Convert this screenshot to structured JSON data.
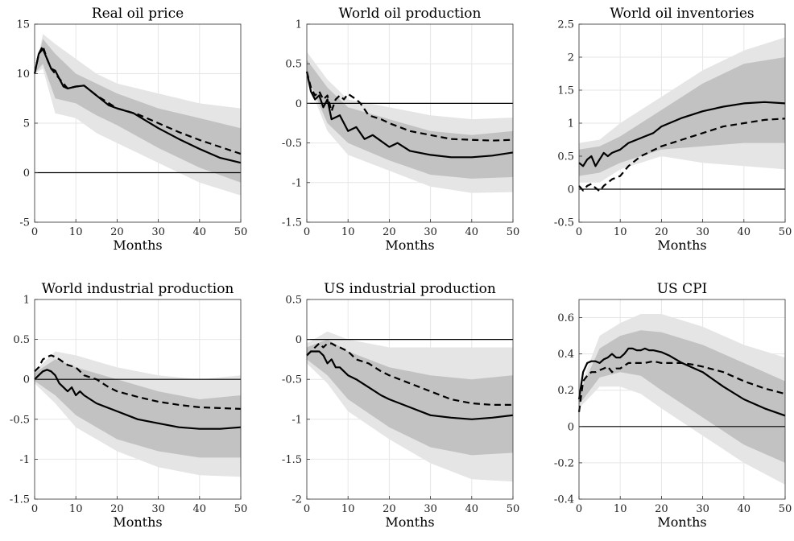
{
  "chart_data": [
    {
      "type": "line",
      "title": "Real oil price",
      "xlabel": "Months",
      "xlim": [
        0,
        50
      ],
      "ylim": [
        -5,
        15
      ],
      "xticks": [
        0,
        10,
        20,
        30,
        40,
        50
      ],
      "yticks": [
        -5,
        0,
        5,
        10,
        15
      ],
      "zero_line": true,
      "series": [
        {
          "style": "solid",
          "x": [
            0,
            1,
            2,
            3,
            4,
            5,
            6,
            7,
            8,
            10,
            12,
            15,
            18,
            20,
            24,
            30,
            35,
            40,
            45,
            50
          ],
          "y": [
            10,
            12,
            12.5,
            11.5,
            10.5,
            10.3,
            9.5,
            8.7,
            8.5,
            8.7,
            8.8,
            7.8,
            6.8,
            6.5,
            6.0,
            4.5,
            3.4,
            2.4,
            1.5,
            1.0
          ]
        },
        {
          "style": "dashed",
          "x": [
            0,
            1,
            2,
            3,
            4,
            5,
            6,
            8,
            10,
            12,
            15,
            20,
            25,
            30,
            35,
            40,
            45,
            50
          ],
          "y": [
            10,
            12,
            12.8,
            11.5,
            10.5,
            10,
            9.5,
            8.5,
            8.7,
            8.8,
            7.8,
            6.5,
            5.9,
            5.0,
            4.1,
            3.3,
            2.6,
            1.9
          ]
        }
      ],
      "bands": [
        {
          "level": "outer",
          "x": [
            0,
            2,
            5,
            10,
            15,
            20,
            30,
            40,
            50
          ],
          "lower": [
            10,
            10.5,
            6,
            5.5,
            4,
            3,
            1,
            -1,
            -2.3
          ],
          "upper": [
            10,
            14,
            13,
            11.5,
            10,
            9,
            8,
            7,
            6.5
          ]
        },
        {
          "level": "inner",
          "x": [
            0,
            2,
            5,
            10,
            15,
            20,
            30,
            40,
            50
          ],
          "lower": [
            10,
            11,
            7.5,
            7,
            5.8,
            4.8,
            2.5,
            0.5,
            -1
          ],
          "upper": [
            10,
            13.5,
            12,
            10,
            9,
            8,
            6.5,
            5.5,
            4.5
          ]
        }
      ]
    },
    {
      "type": "line",
      "title": "World oil production",
      "xlabel": "Months",
      "xlim": [
        0,
        50
      ],
      "ylim": [
        -1.5,
        1
      ],
      "xticks": [
        0,
        10,
        20,
        30,
        40,
        50
      ],
      "yticks": [
        -1.5,
        -1,
        -0.5,
        0,
        0.5,
        1
      ],
      "zero_line": true,
      "series": [
        {
          "style": "solid",
          "x": [
            0,
            1,
            2,
            3,
            4,
            5,
            6,
            8,
            10,
            12,
            14,
            16,
            20,
            22,
            25,
            30,
            35,
            40,
            45,
            50
          ],
          "y": [
            0.4,
            0.15,
            0.05,
            0.1,
            -0.05,
            0.05,
            -0.2,
            -0.15,
            -0.35,
            -0.3,
            -0.45,
            -0.4,
            -0.55,
            -0.5,
            -0.6,
            -0.65,
            -0.68,
            -0.68,
            -0.66,
            -0.62
          ]
        },
        {
          "style": "dashed",
          "x": [
            0,
            1,
            2,
            3,
            4,
            5,
            6,
            7,
            8,
            9,
            10,
            12,
            13,
            15,
            18,
            20,
            25,
            30,
            35,
            40,
            45,
            50
          ],
          "y": [
            0.4,
            0.2,
            0.1,
            0.15,
            0.05,
            0.1,
            -0.1,
            0.05,
            0.1,
            0.05,
            0.12,
            0.05,
            0.0,
            -0.15,
            -0.2,
            -0.25,
            -0.35,
            -0.4,
            -0.45,
            -0.46,
            -0.47,
            -0.46
          ]
        }
      ],
      "bands": [
        {
          "level": "outer",
          "x": [
            0,
            5,
            10,
            20,
            30,
            40,
            50
          ],
          "lower": [
            0.3,
            -0.35,
            -0.65,
            -0.85,
            -1.05,
            -1.13,
            -1.12
          ],
          "upper": [
            0.65,
            0.3,
            0.05,
            -0.05,
            -0.15,
            -0.2,
            -0.18
          ]
        },
        {
          "level": "inner",
          "x": [
            0,
            5,
            10,
            20,
            30,
            40,
            50
          ],
          "lower": [
            0.35,
            -0.25,
            -0.5,
            -0.72,
            -0.9,
            -0.95,
            -0.93
          ],
          "upper": [
            0.55,
            0.2,
            -0.05,
            -0.2,
            -0.35,
            -0.4,
            -0.35
          ]
        }
      ]
    },
    {
      "type": "line",
      "title": "World oil inventories",
      "xlabel": "Months",
      "xlim": [
        0,
        50
      ],
      "ylim": [
        -0.5,
        2.5
      ],
      "xticks": [
        0,
        10,
        20,
        30,
        40,
        50
      ],
      "yticks": [
        -0.5,
        0,
        0.5,
        1,
        1.5,
        2,
        2.5
      ],
      "zero_line": true,
      "series": [
        {
          "style": "solid",
          "x": [
            0,
            1,
            2,
            3,
            4,
            5,
            6,
            7,
            8,
            10,
            12,
            14,
            16,
            18,
            20,
            25,
            30,
            35,
            40,
            45,
            50
          ],
          "y": [
            0.4,
            0.35,
            0.45,
            0.5,
            0.35,
            0.45,
            0.55,
            0.5,
            0.55,
            0.6,
            0.7,
            0.75,
            0.8,
            0.85,
            0.95,
            1.08,
            1.18,
            1.25,
            1.3,
            1.32,
            1.3
          ]
        },
        {
          "style": "dashed",
          "x": [
            0,
            1,
            2,
            3,
            4,
            5,
            6,
            8,
            10,
            12,
            15,
            20,
            25,
            30,
            35,
            40,
            45,
            50
          ],
          "y": [
            0.05,
            -0.02,
            0.05,
            0.08,
            0.02,
            -0.03,
            0.05,
            0.15,
            0.2,
            0.35,
            0.5,
            0.65,
            0.75,
            0.85,
            0.95,
            1.0,
            1.05,
            1.07
          ]
        }
      ],
      "bands": [
        {
          "level": "outer",
          "x": [
            0,
            5,
            10,
            20,
            30,
            40,
            50
          ],
          "lower": [
            0.1,
            0.1,
            0.3,
            0.5,
            0.4,
            0.35,
            0.3
          ],
          "upper": [
            0.7,
            0.75,
            1.0,
            1.4,
            1.8,
            2.1,
            2.3
          ]
        },
        {
          "level": "inner",
          "x": [
            0,
            5,
            10,
            20,
            30,
            40,
            50
          ],
          "lower": [
            0.2,
            0.25,
            0.4,
            0.6,
            0.65,
            0.7,
            0.7
          ],
          "upper": [
            0.6,
            0.65,
            0.8,
            1.2,
            1.6,
            1.9,
            2.0
          ]
        }
      ]
    },
    {
      "type": "line",
      "title": "World industrial production",
      "xlabel": "Months",
      "xlim": [
        0,
        50
      ],
      "ylim": [
        -1.5,
        1
      ],
      "xticks": [
        0,
        10,
        20,
        30,
        40,
        50
      ],
      "yticks": [
        -1.5,
        -1,
        -0.5,
        0,
        0.5,
        1
      ],
      "zero_line": true,
      "series": [
        {
          "style": "solid",
          "x": [
            0,
            1,
            2,
            3,
            4,
            5,
            6,
            8,
            9,
            10,
            11,
            12,
            15,
            20,
            25,
            30,
            35,
            40,
            45,
            50
          ],
          "y": [
            0,
            0.05,
            0.1,
            0.12,
            0.1,
            0.05,
            -0.05,
            -0.15,
            -0.1,
            -0.2,
            -0.15,
            -0.2,
            -0.3,
            -0.4,
            -0.5,
            -0.55,
            -0.6,
            -0.62,
            -0.62,
            -0.6
          ]
        },
        {
          "style": "dashed",
          "x": [
            0,
            1,
            2,
            3,
            4,
            5,
            6,
            8,
            10,
            12,
            15,
            18,
            20,
            25,
            30,
            35,
            40,
            45,
            50
          ],
          "y": [
            0.1,
            0.15,
            0.25,
            0.28,
            0.3,
            0.28,
            0.25,
            0.18,
            0.15,
            0.05,
            0.0,
            -0.1,
            -0.15,
            -0.22,
            -0.28,
            -0.32,
            -0.35,
            -0.36,
            -0.37
          ]
        }
      ],
      "bands": [
        {
          "level": "outer",
          "x": [
            0,
            5,
            10,
            20,
            30,
            40,
            50
          ],
          "lower": [
            -0.05,
            -0.3,
            -0.6,
            -0.9,
            -1.1,
            -1.2,
            -1.22
          ],
          "upper": [
            0.1,
            0.35,
            0.3,
            0.15,
            0.05,
            0.0,
            0.05
          ]
        },
        {
          "level": "inner",
          "x": [
            0,
            5,
            10,
            20,
            30,
            40,
            50
          ],
          "lower": [
            -0.02,
            -0.2,
            -0.45,
            -0.75,
            -0.9,
            -0.98,
            -0.98
          ],
          "upper": [
            0.08,
            0.25,
            0.15,
            0.0,
            -0.15,
            -0.25,
            -0.2
          ]
        }
      ]
    },
    {
      "type": "line",
      "title": "US industrial production",
      "xlabel": "Months",
      "xlim": [
        0,
        50
      ],
      "ylim": [
        -2,
        0.5
      ],
      "xticks": [
        0,
        10,
        20,
        30,
        40,
        50
      ],
      "yticks": [
        -2,
        -1.5,
        -1,
        -0.5,
        0,
        0.5
      ],
      "zero_line": true,
      "series": [
        {
          "style": "solid",
          "x": [
            0,
            1,
            2,
            3,
            4,
            5,
            6,
            7,
            8,
            10,
            12,
            15,
            18,
            20,
            25,
            30,
            35,
            40,
            45,
            50
          ],
          "y": [
            -0.2,
            -0.15,
            -0.15,
            -0.15,
            -0.2,
            -0.3,
            -0.25,
            -0.35,
            -0.35,
            -0.45,
            -0.5,
            -0.6,
            -0.7,
            -0.75,
            -0.85,
            -0.95,
            -0.98,
            -1.0,
            -0.98,
            -0.95
          ]
        },
        {
          "style": "dashed",
          "x": [
            0,
            1,
            2,
            3,
            4,
            5,
            6,
            7,
            8,
            10,
            12,
            15,
            18,
            20,
            25,
            30,
            35,
            40,
            45,
            50
          ],
          "y": [
            -0.2,
            -0.15,
            -0.1,
            -0.05,
            -0.1,
            -0.05,
            -0.05,
            -0.08,
            -0.1,
            -0.15,
            -0.25,
            -0.3,
            -0.4,
            -0.45,
            -0.55,
            -0.65,
            -0.75,
            -0.8,
            -0.82,
            -0.82
          ]
        }
      ],
      "bands": [
        {
          "level": "outer",
          "x": [
            0,
            5,
            10,
            20,
            30,
            40,
            50
          ],
          "lower": [
            -0.3,
            -0.55,
            -0.9,
            -1.25,
            -1.55,
            -1.75,
            -1.78
          ],
          "upper": [
            -0.05,
            0.1,
            0.0,
            -0.1,
            -0.1,
            -0.1,
            -0.1
          ]
        },
        {
          "level": "inner",
          "x": [
            0,
            5,
            10,
            20,
            30,
            40,
            50
          ],
          "lower": [
            -0.25,
            -0.45,
            -0.75,
            -1.1,
            -1.35,
            -1.45,
            -1.42
          ],
          "upper": [
            -0.1,
            0.0,
            -0.15,
            -0.35,
            -0.45,
            -0.5,
            -0.45
          ]
        }
      ]
    },
    {
      "type": "line",
      "title": "US CPI",
      "xlabel": "Months",
      "xlim": [
        0,
        50
      ],
      "ylim": [
        -0.4,
        0.7
      ],
      "xticks": [
        0,
        10,
        20,
        30,
        40,
        50
      ],
      "yticks": [
        -0.4,
        -0.2,
        0,
        0.2,
        0.4,
        0.6
      ],
      "zero_line": true,
      "series": [
        {
          "style": "solid",
          "x": [
            0,
            1,
            2,
            3,
            4,
            5,
            6,
            7,
            8,
            9,
            10,
            11,
            12,
            13,
            14,
            15,
            16,
            17,
            18,
            20,
            22,
            25,
            30,
            35,
            40,
            45,
            50
          ],
          "y": [
            0.15,
            0.3,
            0.35,
            0.36,
            0.36,
            0.35,
            0.37,
            0.38,
            0.4,
            0.38,
            0.38,
            0.4,
            0.43,
            0.43,
            0.42,
            0.42,
            0.43,
            0.42,
            0.42,
            0.41,
            0.39,
            0.35,
            0.3,
            0.22,
            0.15,
            0.1,
            0.06
          ]
        },
        {
          "style": "dashed",
          "x": [
            0,
            1,
            2,
            3,
            4,
            5,
            6,
            7,
            8,
            9,
            10,
            12,
            14,
            16,
            18,
            20,
            22,
            25,
            28,
            30,
            35,
            40,
            45,
            50
          ],
          "y": [
            0.08,
            0.25,
            0.28,
            0.3,
            0.3,
            0.31,
            0.32,
            0.33,
            0.3,
            0.32,
            0.32,
            0.35,
            0.35,
            0.35,
            0.36,
            0.35,
            0.35,
            0.35,
            0.34,
            0.33,
            0.3,
            0.25,
            0.21,
            0.18
          ]
        }
      ],
      "bands": [
        {
          "level": "outer",
          "x": [
            0,
            5,
            10,
            15,
            20,
            30,
            40,
            50
          ],
          "lower": [
            0.1,
            0.22,
            0.22,
            0.18,
            0.1,
            -0.05,
            -0.2,
            -0.32
          ],
          "upper": [
            0.2,
            0.5,
            0.57,
            0.62,
            0.62,
            0.55,
            0.45,
            0.38
          ]
        },
        {
          "level": "inner",
          "x": [
            0,
            5,
            10,
            15,
            20,
            30,
            40,
            50
          ],
          "lower": [
            0.12,
            0.27,
            0.3,
            0.28,
            0.2,
            0.05,
            -0.1,
            -0.2
          ],
          "upper": [
            0.18,
            0.43,
            0.5,
            0.53,
            0.52,
            0.45,
            0.35,
            0.25
          ]
        }
      ]
    }
  ],
  "colors": {
    "outer_band": "#e5e5e5",
    "inner_band": "#c2c2c2",
    "line": "#000000",
    "zero_line": "#000000",
    "grid": "#e6e6e6"
  }
}
